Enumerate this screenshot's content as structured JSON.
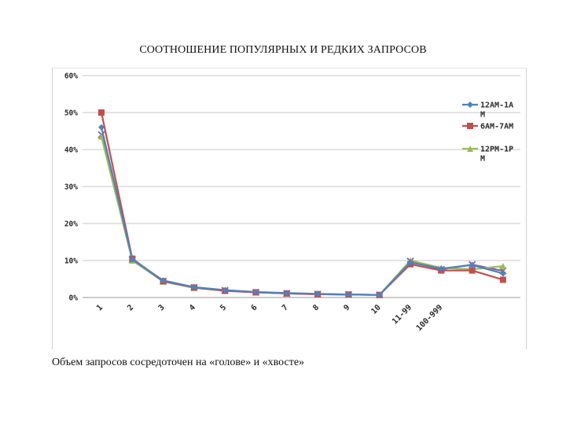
{
  "slide": {
    "title": "СООТНОШЕНИЕ ПОПУЛЯРНЫХ И РЕДКИХ ЗАПРОСОВ",
    "caption": "Объем запросов сосредоточен на «голове» и «хвосте»"
  },
  "chart_data": {
    "type": "line",
    "categories": [
      "1",
      "2",
      "3",
      "4",
      "5",
      "6",
      "7",
      "8",
      "9",
      "10",
      "11-99",
      "100-999",
      "",
      ""
    ],
    "ylim": [
      0,
      60
    ],
    "yticks": [
      "0%",
      "10%",
      "20%",
      "30%",
      "40%",
      "50%",
      "60%"
    ],
    "grid": true,
    "legend": "right",
    "series": [
      {
        "name_lines": [
          "12AM-1A",
          "M"
        ],
        "color": "#4f81bd",
        "marker": "diamond",
        "values": [
          46,
          10.3,
          4.6,
          2.8,
          2.0,
          1.5,
          1.2,
          1.0,
          0.8,
          0.7,
          9.5,
          7.8,
          8.8,
          6.5
        ]
      },
      {
        "name_lines": [
          "6AM-7AM"
        ],
        "color": "#c0504d",
        "marker": "square",
        "values": [
          50,
          10.5,
          4.4,
          2.7,
          1.8,
          1.4,
          1.1,
          0.9,
          0.8,
          0.7,
          9.0,
          7.3,
          7.3,
          4.8
        ]
      },
      {
        "name_lines": [
          "12PM-1P",
          "M"
        ],
        "color": "#9bbb59",
        "marker": "triangle",
        "values": [
          43.5,
          10.0,
          4.3,
          2.6,
          1.8,
          1.4,
          1.1,
          0.9,
          0.8,
          0.7,
          10.0,
          8.0,
          7.6,
          8.5
        ]
      },
      {
        "name_lines": [],
        "color": "#8064a2",
        "marker": "x",
        "values": [
          44,
          10.2,
          4.4,
          2.7,
          1.9,
          1.4,
          1.1,
          0.9,
          0.8,
          0.7,
          9.8,
          7.6,
          8.9,
          7.2
        ]
      }
    ]
  }
}
